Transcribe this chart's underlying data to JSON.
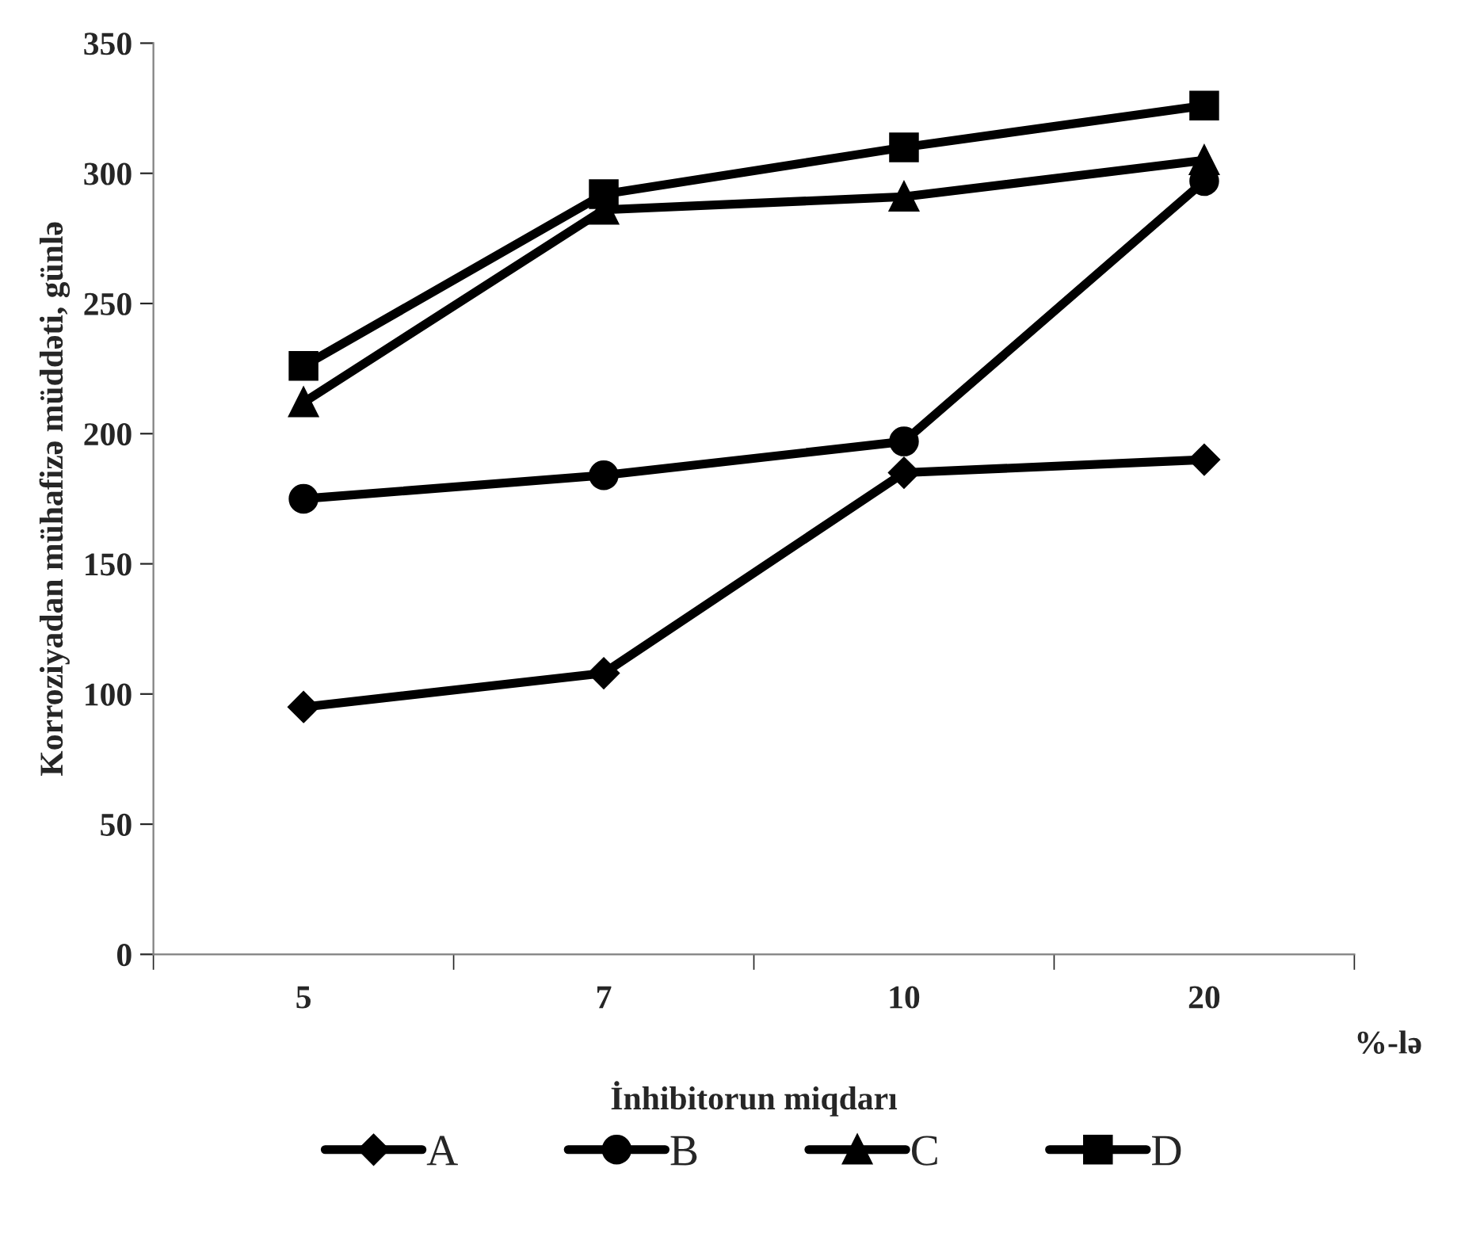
{
  "chart_data": {
    "type": "line",
    "xlabel": "İnhibitorun miqdarı",
    "ylabel": "Korroziyadan mühafizə müddəti, günlə",
    "categories": [
      "5",
      "7",
      "10",
      "20"
    ],
    "series": [
      {
        "name": "A",
        "color": "#000000",
        "marker": "diamond",
        "values": [
          95,
          108,
          185,
          190
        ]
      },
      {
        "name": "B",
        "color": "#000000",
        "marker": "circle",
        "values": [
          175,
          184,
          197,
          297
        ]
      },
      {
        "name": "C",
        "color": "#000000",
        "marker": "triangle",
        "values": [
          212,
          286,
          291,
          305
        ]
      },
      {
        "name": "D",
        "color": "#000000",
        "marker": "square",
        "values": [
          226,
          292,
          310,
          326
        ]
      }
    ],
    "ylim": [
      0,
      350
    ],
    "yticks": [
      0,
      50,
      100,
      150,
      200,
      250,
      300,
      350
    ],
    "annotations": [
      "%-lə"
    ],
    "grid": false,
    "legend": "bottom",
    "line_style": "solid"
  }
}
